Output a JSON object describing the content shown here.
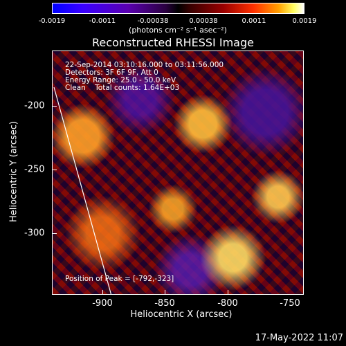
{
  "colorbar": {
    "ticks": [
      "-0.0019",
      "-0.0011",
      "-0.00038",
      "0.00038",
      "0.0011",
      "0.0019"
    ],
    "units": "(photons cm⁻² s⁻¹ asec⁻²)"
  },
  "title": "Reconstructed RHESSI Image",
  "info": {
    "time": "22-Sep-2014 03:10:16.000 to 03:11:56.000",
    "detectors": "Detectors: 3F 6F 9F, Att 0",
    "energy": "Energy Range: 25.0 - 50.0 keV",
    "clean": "Clean    Total counts: 1.64E+03"
  },
  "peak": "Position of Peak = [-792,-323]",
  "axes": {
    "ylabel": "Heliocentric Y (arcsec)",
    "xlabel": "Heliocentric X (arcsec)",
    "yticks": [
      "-200",
      "-250",
      "-300"
    ],
    "xticks": [
      "-900",
      "-850",
      "-800",
      "-750"
    ]
  },
  "footer": "17-May-2022 11:07"
}
